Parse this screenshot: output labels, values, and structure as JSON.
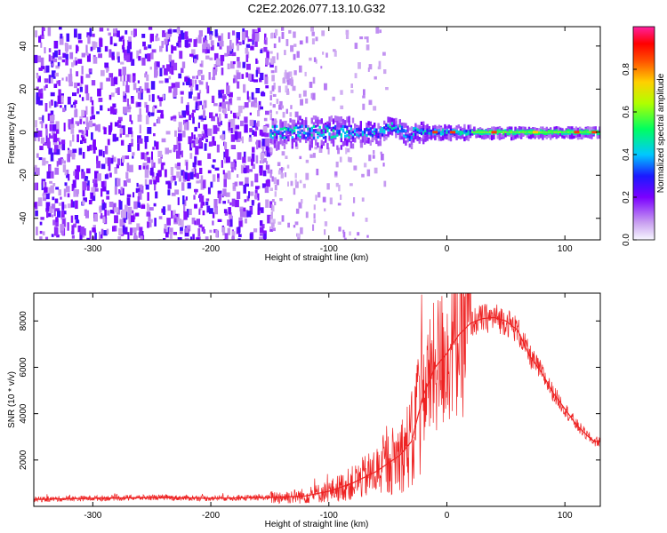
{
  "chart_data": [
    {
      "type": "heatmap",
      "title": "C2E2.2026.077.13.10.G32",
      "xlabel": "Height of straight line (km)",
      "ylabel": "Frequency (Hz)",
      "xlim": [
        -350,
        130
      ],
      "ylim": [
        -50,
        49
      ],
      "xticks": [
        -300,
        -200,
        -100,
        0,
        100
      ],
      "yticks": [
        -40,
        -20,
        0,
        20,
        40
      ],
      "colorbar": {
        "label": "Normalized spectral amplitude",
        "range": [
          0.0,
          1.0
        ],
        "ticks": [
          0.0,
          0.2,
          0.4,
          0.6,
          0.8
        ],
        "tick_labels": [
          "0.0",
          "0.2",
          "0.4",
          "0.6",
          "0.8"
        ],
        "colormap": [
          "#f7f7ff",
          "#c9a0f0",
          "#7b00ff",
          "#1a1aff",
          "#00c8ff",
          "#00ff60",
          "#b0ff00",
          "#ffd000",
          "#ff5000",
          "#ff0000",
          "#ff20a0"
        ]
      },
      "features": {
        "noise_region_x": [
          -350,
          -150
        ],
        "signal_onset_x": -150,
        "carrier_frequency_hz": 0,
        "carrier_core_start_x": 20,
        "peak_amplitude_x": 75
      }
    },
    {
      "type": "line",
      "xlabel": "Height of straight line (km)",
      "ylabel": "SNR (10 * v/v)",
      "xlim": [
        -350,
        130
      ],
      "ylim": [
        0,
        9200
      ],
      "xticks": [
        -300,
        -200,
        -100,
        0,
        100
      ],
      "yticks": [
        2000,
        4000,
        6000,
        8000
      ],
      "series": [
        {
          "name": "SNR",
          "color": "#ee2222",
          "x": [
            -350,
            -300,
            -250,
            -200,
            -150,
            -120,
            -100,
            -80,
            -60,
            -40,
            -30,
            -20,
            -10,
            0,
            10,
            20,
            30,
            40,
            50,
            60,
            70,
            80,
            90,
            100,
            110,
            120,
            125,
            130
          ],
          "y": [
            300,
            350,
            380,
            350,
            380,
            450,
            650,
            1000,
            1500,
            2200,
            2800,
            4800,
            6000,
            6600,
            7400,
            7900,
            8100,
            8150,
            8000,
            7600,
            6500,
            5800,
            4900,
            4200,
            3500,
            3000,
            2800,
            2800
          ]
        }
      ]
    }
  ]
}
